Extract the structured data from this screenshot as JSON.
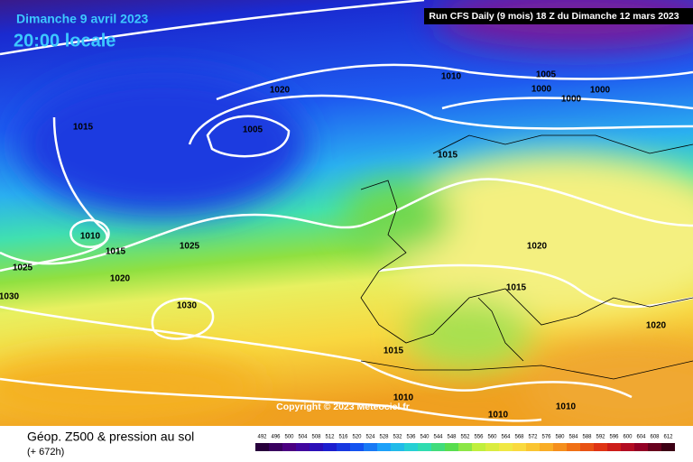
{
  "header": {
    "date": "Dimanche 9 avril 2023",
    "time": "20:00 locale",
    "run": "Run CFS Daily (9 mois) 18 Z du Dimanche 12 mars 2023"
  },
  "isobar_labels": [
    "1020",
    "1015",
    "1005",
    "1010",
    "1005",
    "1000",
    "1000",
    "1000",
    "1015",
    "1010",
    "1015",
    "1025",
    "1025",
    "1020",
    "1030",
    "1030",
    "1020",
    "1015",
    "1020",
    "1015",
    "1010",
    "1010",
    "1010"
  ],
  "copyright": "Copyright © 2023 Meteociel.fr",
  "footer": {
    "title": "Géop. Z500 & pression au sol",
    "lead": "(+ 672h)"
  },
  "legend": [
    492,
    496,
    500,
    504,
    508,
    512,
    516,
    520,
    524,
    528,
    532,
    536,
    540,
    544,
    548,
    552,
    556,
    560,
    564,
    568,
    572,
    576,
    580,
    584,
    588,
    592,
    596,
    600,
    604,
    608,
    612
  ]
}
